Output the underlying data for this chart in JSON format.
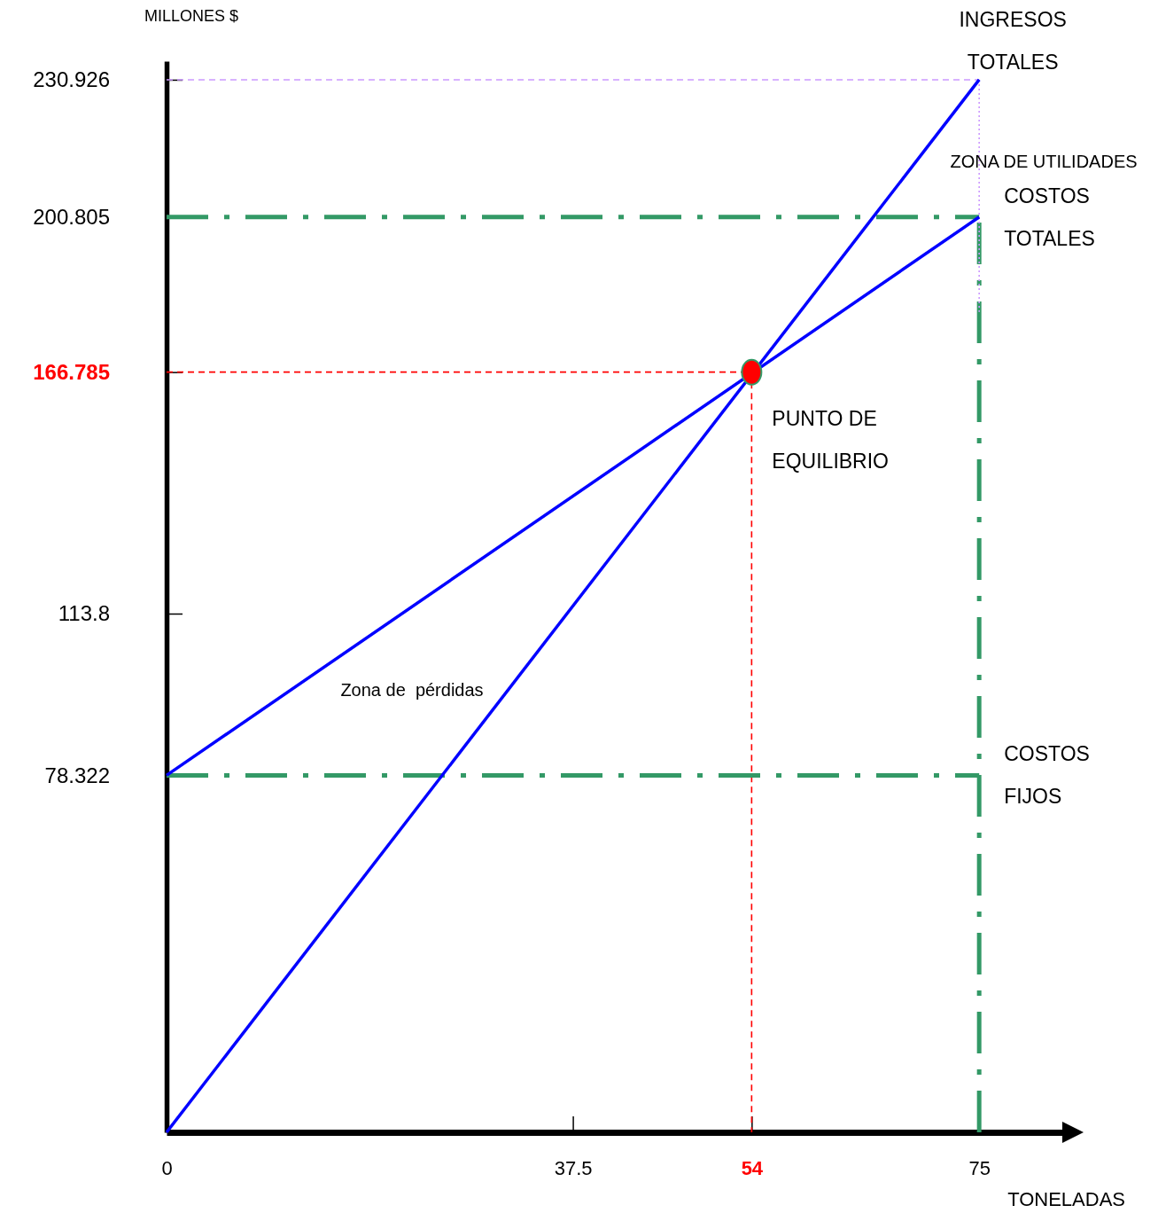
{
  "chart_data": {
    "type": "line",
    "xlabel": "TONELADAS",
    "ylabel": "MILLONES $",
    "xlim": [
      0,
      83
    ],
    "ylim": [
      0,
      235
    ],
    "xticks": [
      0,
      37.5,
      54,
      75
    ],
    "yticks": [
      78.322,
      113.8,
      166.785,
      200.805,
      230.926
    ],
    "annotations": [
      "ZONA DE UTILIDADES",
      "Zona de  pérdidas"
    ],
    "series": [
      {
        "x": [
          0,
          75
        ],
        "values": [
          200.805,
          200.805
        ],
        "color": "#339966",
        "line_style": "dashdot"
      },
      {
        "x": [
          75,
          75
        ],
        "values": [
          0,
          200.805
        ],
        "color": "#339966",
        "line_style": "dashdot"
      },
      {
        "x": [
          0,
          75
        ],
        "values": [
          230.926,
          230.926
        ],
        "color": "#cc99ff",
        "line_style": "dashed"
      },
      {
        "x": [
          75,
          75
        ],
        "values": [
          230.926,
          180
        ],
        "color": "#cc99ff",
        "line_style": "dotted"
      },
      {
        "x": [
          0,
          54,
          54
        ],
        "values": [
          166.785,
          166.785,
          0
        ],
        "color": "#ff0000",
        "line_style": "dashed"
      },
      {
        "name": "COSTOS FIJOS",
        "x": [
          0,
          75
        ],
        "values": [
          78.322,
          78.322
        ],
        "color": "#339966",
        "line_style": "dashdot"
      },
      {
        "name": "INGRESOS TOTALES",
        "x": [
          0,
          75
        ],
        "values": [
          0,
          230.926
        ],
        "color": "#0000ff",
        "line_style": "solid"
      },
      {
        "name": "COSTOS TOTALES",
        "x": [
          0,
          75
        ],
        "values": [
          78.322,
          200.805
        ],
        "color": "#0000ff",
        "line_style": "solid"
      },
      {
        "type": "scatter",
        "name": "PUNTO DE EQUILIBRIO",
        "x": [
          54
        ],
        "values": [
          166.785
        ],
        "color": "#ff0000",
        "marker": "circle"
      }
    ]
  }
}
